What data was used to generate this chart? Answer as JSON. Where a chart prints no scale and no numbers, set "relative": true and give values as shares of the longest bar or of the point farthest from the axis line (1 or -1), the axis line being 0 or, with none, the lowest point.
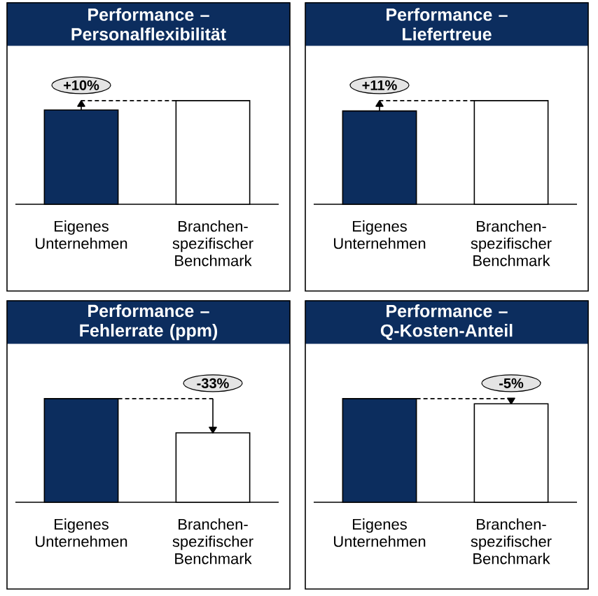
{
  "chart_data": [
    {
      "type": "bar",
      "title": "Performance – Personalflexibilität",
      "categories": [
        "Eigenes Unternehmen",
        "Branchen-spezifischer Benchmark"
      ],
      "values": [
        0.91,
        1
      ],
      "colors": [
        "#0c2d5e",
        "#ffffff"
      ],
      "relative": true,
      "annotations": [
        "+10%"
      ]
    },
    {
      "type": "bar",
      "title": "Performance – Liefertreue",
      "categories": [
        "Eigenes Unternehmen",
        "Branchen-spezifischer Benchmark"
      ],
      "values": [
        0.9,
        1
      ],
      "colors": [
        "#0c2d5e",
        "#ffffff"
      ],
      "relative": true,
      "annotations": [
        "+11%"
      ]
    },
    {
      "type": "bar",
      "title": "Performance – Fehlerrate (ppm)",
      "categories": [
        "Eigenes Unternehmen",
        "Branchen-spezifischer Benchmark"
      ],
      "values": [
        1,
        0.67
      ],
      "colors": [
        "#0c2d5e",
        "#ffffff"
      ],
      "relative": true,
      "annotations": [
        "-33%"
      ]
    },
    {
      "type": "bar",
      "title": "Performance – Q-Kosten-Anteil",
      "categories": [
        "Eigenes Unternehmen",
        "Branchen-spezifischer Benchmark"
      ],
      "values": [
        1,
        0.95
      ],
      "colors": [
        "#0c2d5e",
        "#ffffff"
      ],
      "relative": true,
      "annotations": [
        "-5%"
      ]
    }
  ]
}
